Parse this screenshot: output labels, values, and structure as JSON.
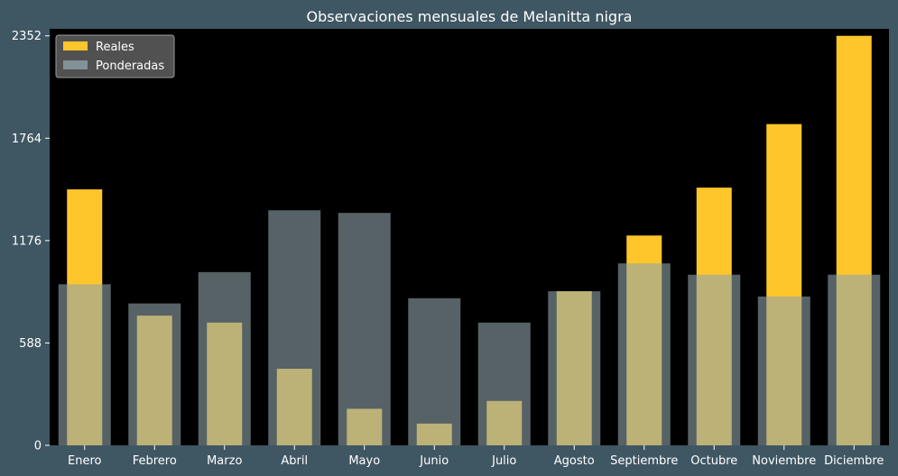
{
  "chart_data": {
    "type": "bar",
    "title": "Observaciones mensuales de Melanitta nigra",
    "xlabel": "",
    "ylabel": "",
    "categories": [
      "Enero",
      "Febrero",
      "Marzo",
      "Abril",
      "Mayo",
      "Junio",
      "Julio",
      "Agosto",
      "Septiembre",
      "Octubre",
      "Noviembre",
      "Diciembre"
    ],
    "series": [
      {
        "name": "Reales",
        "color": "#ffc62b",
        "values": [
          1470,
          745,
          705,
          440,
          210,
          125,
          255,
          885,
          1205,
          1480,
          1845,
          2352
        ]
      },
      {
        "name": "Ponderadas",
        "color": "#8fa3aa",
        "values": [
          925,
          815,
          995,
          1350,
          1335,
          845,
          705,
          885,
          1045,
          980,
          855,
          980
        ]
      }
    ],
    "yticks": [
      0,
      588,
      1176,
      1764,
      2352
    ],
    "ylim": [
      0,
      2352
    ],
    "legend_position": "top-left",
    "grid": false,
    "colors": {
      "figure_background": "#3f5663",
      "plot_background": "#000000",
      "text": "#ffffff"
    }
  }
}
